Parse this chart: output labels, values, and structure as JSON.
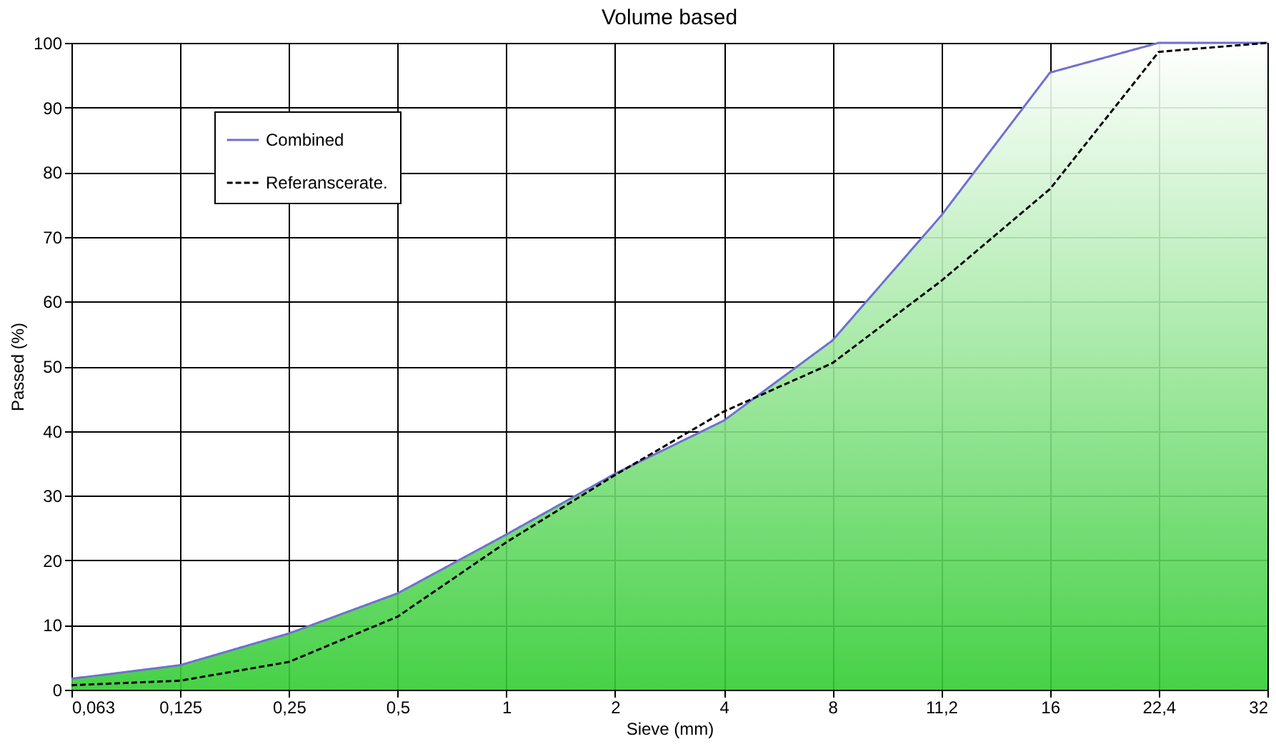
{
  "chart_data": {
    "type": "area",
    "title": "Volume based",
    "xlabel": "Sieve (mm)",
    "ylabel": "Passed (%)",
    "categories": [
      "0,063",
      "0,125",
      "0,25",
      "0,5",
      "1",
      "2",
      "4",
      "8",
      "11,2",
      "16",
      "22,4",
      "32"
    ],
    "series": [
      {
        "name": "Combined",
        "color": "#7070d0",
        "line_style": "solid",
        "values": [
          1.7,
          3.8,
          8.7,
          14.9,
          24,
          33.4,
          41.6,
          54,
          73.3,
          95.4,
          100,
          100
        ]
      },
      {
        "name": "Referanscerate.",
        "color": "#000000",
        "type": "line",
        "line_style": "dashed",
        "values": [
          0.7,
          1.4,
          4.3,
          11.3,
          22.8,
          33.2,
          43,
          50.5,
          63.2,
          77.4,
          98.6,
          100
        ]
      }
    ],
    "ylim": [
      0,
      100
    ],
    "yticks": [
      0,
      10,
      20,
      30,
      40,
      50,
      60,
      70,
      80,
      90,
      100
    ],
    "grid": true,
    "legend": "top left"
  }
}
